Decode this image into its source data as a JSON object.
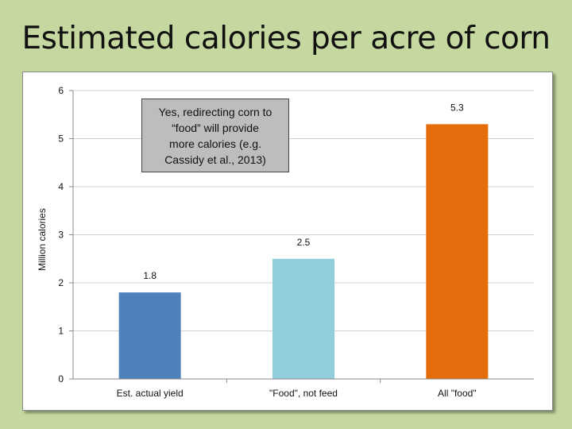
{
  "slide": {
    "title": "Estimated calories per acre of corn"
  },
  "callout": {
    "lines": [
      "Yes, redirecting corn to",
      "“food” will provide",
      "more calories (e.g.",
      "Cassidy et al., 2013)"
    ]
  },
  "colors": {
    "background": "#c5d89f",
    "bar1": "#4f81bd",
    "bar2": "#92cddc",
    "bar3": "#e46c0a",
    "grid": "#d0d0d0"
  },
  "chart_data": {
    "type": "bar",
    "title": "Estimated calories per acre of corn",
    "xlabel": "",
    "ylabel": "Million calories",
    "categories": [
      "Est. actual yield",
      "\"Food\", not feed",
      "All \"food\""
    ],
    "values": [
      1.8,
      2.5,
      5.3
    ],
    "data_labels": [
      "1.8",
      "2.5",
      "5.3"
    ],
    "ylim": [
      0,
      6
    ],
    "yticks": [
      0,
      1,
      2,
      3,
      4,
      5,
      6
    ],
    "bar_colors": [
      "#4f81bd",
      "#92cddc",
      "#e46c0a"
    ],
    "grid": true,
    "legend": false
  }
}
